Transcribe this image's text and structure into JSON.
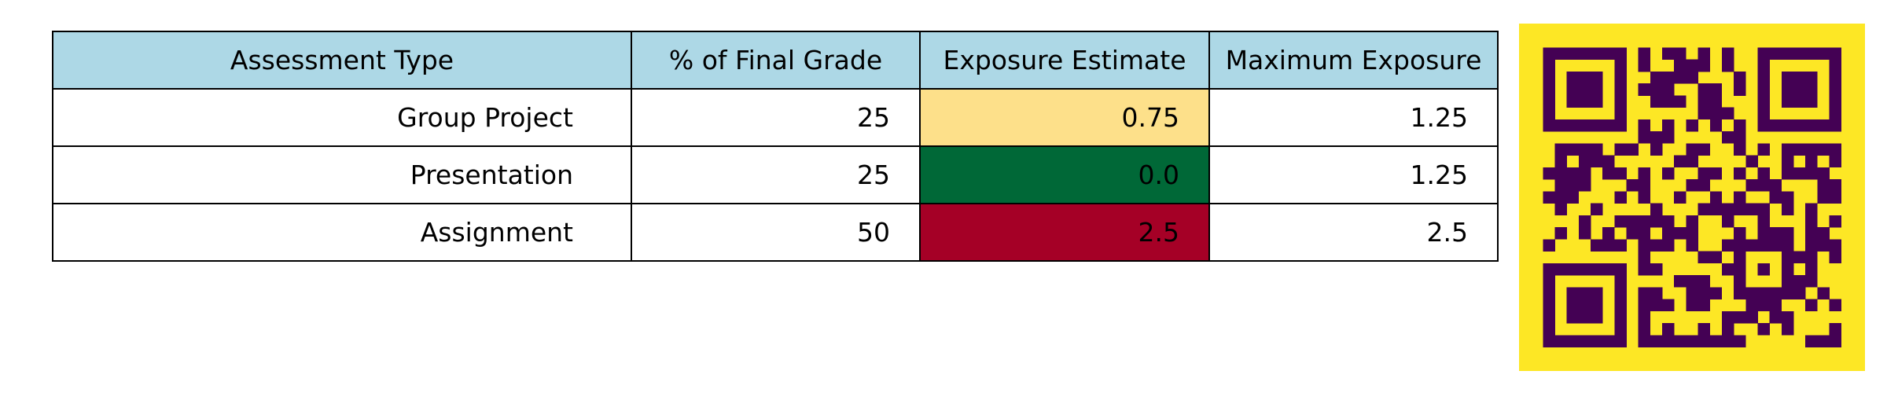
{
  "colors": {
    "header_bg": "#add8e6",
    "cell_bg": "#ffffff",
    "grid": "#000000",
    "text": "#000000",
    "qr_light": "#fde725",
    "qr_dark": "#440154"
  },
  "chart_data": {
    "type": "table",
    "columns": [
      "Assessment Type",
      "% of Final Grade",
      "Exposure Estimate",
      "Maximum Exposure"
    ],
    "rows": [
      {
        "cells": [
          "Group Project",
          "25",
          "0.75",
          "1.25"
        ],
        "highlight": "#fde08a"
      },
      {
        "cells": [
          "Presentation",
          "25",
          "0.0",
          "1.25"
        ],
        "highlight": "#006837"
      },
      {
        "cells": [
          "Assignment",
          "50",
          "2.5",
          "2.5"
        ],
        "highlight": "#a50026"
      }
    ],
    "highlight_column": 2,
    "qr_code": {
      "icon": "qr-code-icon",
      "modules": 25
    }
  }
}
